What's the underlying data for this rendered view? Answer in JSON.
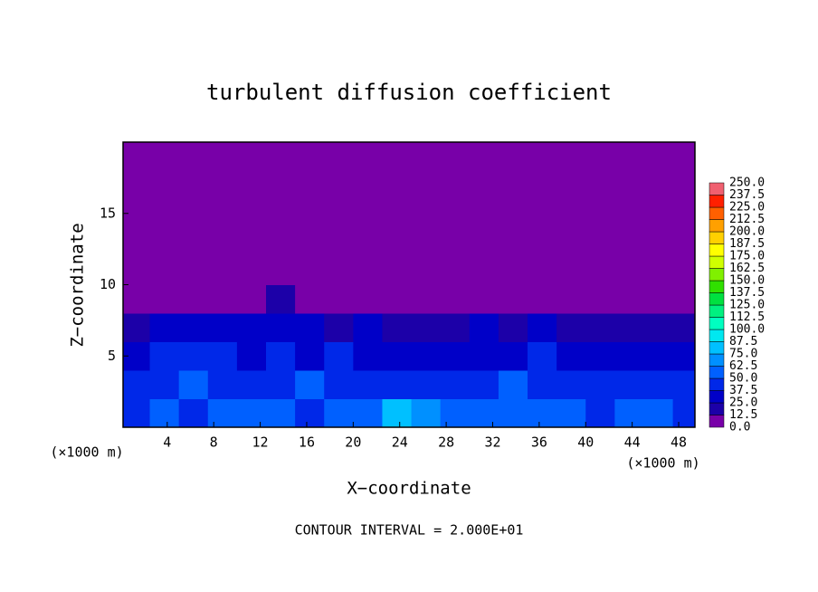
{
  "chart_data": {
    "type": "heatmap",
    "title": "turbulent diffusion coefficient",
    "x_label": "X−coordinate",
    "y_label": "Z−coordinate",
    "x_unit_left": "(×1000 m)",
    "x_unit_right": "(×1000 m)",
    "footer": "CONTOUR INTERVAL = 2.000E+01",
    "xlim": [
      0.2,
      49.4
    ],
    "ylim": [
      0,
      20
    ],
    "xticks": [
      4,
      8,
      12,
      16,
      20,
      24,
      28,
      32,
      36,
      40,
      44,
      48
    ],
    "yticks": [
      5,
      10,
      15
    ],
    "x": [
      1.25,
      3.75,
      6.25,
      8.75,
      11.25,
      13.75,
      16.25,
      18.75,
      21.25,
      23.75,
      26.25,
      28.75,
      31.25,
      33.75,
      36.25,
      38.75,
      41.25,
      43.75,
      46.25,
      48.75
    ],
    "y": [
      1,
      3,
      5,
      7,
      9,
      11,
      13,
      15,
      17,
      19
    ],
    "z": [
      [
        45,
        50,
        45,
        50,
        55,
        50,
        45,
        55,
        60,
        75,
        70,
        55,
        50,
        55,
        50,
        50,
        45,
        60,
        55,
        45
      ],
      [
        40,
        45,
        50,
        45,
        40,
        45,
        50,
        45,
        40,
        45,
        40,
        45,
        40,
        50,
        45,
        40,
        40,
        45,
        40,
        40
      ],
      [
        35,
        45,
        40,
        40,
        35,
        40,
        35,
        40,
        35,
        30,
        35,
        30,
        35,
        35,
        40,
        35,
        30,
        35,
        30,
        30
      ],
      [
        20,
        25,
        30,
        30,
        25,
        30,
        25,
        20,
        25,
        20,
        15,
        20,
        25,
        20,
        25,
        20,
        20,
        15,
        20,
        15
      ],
      [
        0,
        0,
        0,
        5,
        10,
        15,
        5,
        0,
        0,
        0,
        0,
        0,
        0,
        0,
        0,
        0,
        0,
        0,
        0,
        0
      ],
      [
        0,
        0,
        0,
        0,
        0,
        0,
        0,
        0,
        0,
        0,
        0,
        0,
        0,
        0,
        0,
        0,
        0,
        0,
        0,
        0
      ],
      [
        0,
        0,
        0,
        0,
        0,
        0,
        0,
        0,
        0,
        0,
        0,
        0,
        0,
        0,
        0,
        0,
        0,
        0,
        0,
        0
      ],
      [
        0,
        0,
        0,
        0,
        0,
        0,
        0,
        0,
        0,
        0,
        0,
        0,
        0,
        0,
        0,
        0,
        0,
        0,
        0,
        0
      ],
      [
        0,
        0,
        0,
        0,
        0,
        0,
        0,
        0,
        0,
        0,
        0,
        0,
        0,
        0,
        0,
        0,
        0,
        0,
        0,
        0
      ],
      [
        0,
        0,
        0,
        0,
        0,
        0,
        0,
        0,
        0,
        0,
        0,
        0,
        0,
        0,
        0,
        0,
        0,
        0,
        0,
        0
      ]
    ],
    "colorbar": {
      "levels": [
        {
          "value": 0,
          "label": "0.0"
        },
        {
          "value": 12.5,
          "label": "12.5"
        },
        {
          "value": 25,
          "label": "25.0"
        },
        {
          "value": 37.5,
          "label": "37.5"
        },
        {
          "value": 50,
          "label": "50.0"
        },
        {
          "value": 62.5,
          "label": "62.5"
        },
        {
          "value": 75,
          "label": "75.0"
        },
        {
          "value": 87.5,
          "label": "87.5"
        },
        {
          "value": 100,
          "label": "100.0"
        },
        {
          "value": 112.5,
          "label": "112.5"
        },
        {
          "value": 125,
          "label": "125.0"
        },
        {
          "value": 137.5,
          "label": "137.5"
        },
        {
          "value": 150,
          "label": "150.0"
        },
        {
          "value": 162.5,
          "label": "162.5"
        },
        {
          "value": 175,
          "label": "175.0"
        },
        {
          "value": 187.5,
          "label": "187.5"
        },
        {
          "value": 200,
          "label": "200.0"
        },
        {
          "value": 212.5,
          "label": "212.5"
        },
        {
          "value": 225,
          "label": "225.0"
        },
        {
          "value": 237.5,
          "label": "237.5"
        },
        {
          "value": 250,
          "label": "250.0"
        }
      ],
      "colors": [
        "#7800a8",
        "#1c00a8",
        "#0000c8",
        "#0028e8",
        "#0060ff",
        "#0090ff",
        "#00c0ff",
        "#00e8f0",
        "#00ffc0",
        "#00f080",
        "#00e040",
        "#30e000",
        "#80f000",
        "#d0ff00",
        "#ffff00",
        "#ffd000",
        "#ffa000",
        "#ff6000",
        "#ff2000",
        "#f06070"
      ]
    }
  }
}
